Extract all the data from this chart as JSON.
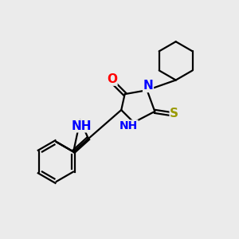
{
  "background_color": "#ebebeb",
  "bond_color": "#000000",
  "atom_colors": {
    "N": "#0000ff",
    "O": "#ff0000",
    "S": "#999900",
    "C": "#000000",
    "H": "#000000"
  },
  "lw": 1.6,
  "fs": 11
}
